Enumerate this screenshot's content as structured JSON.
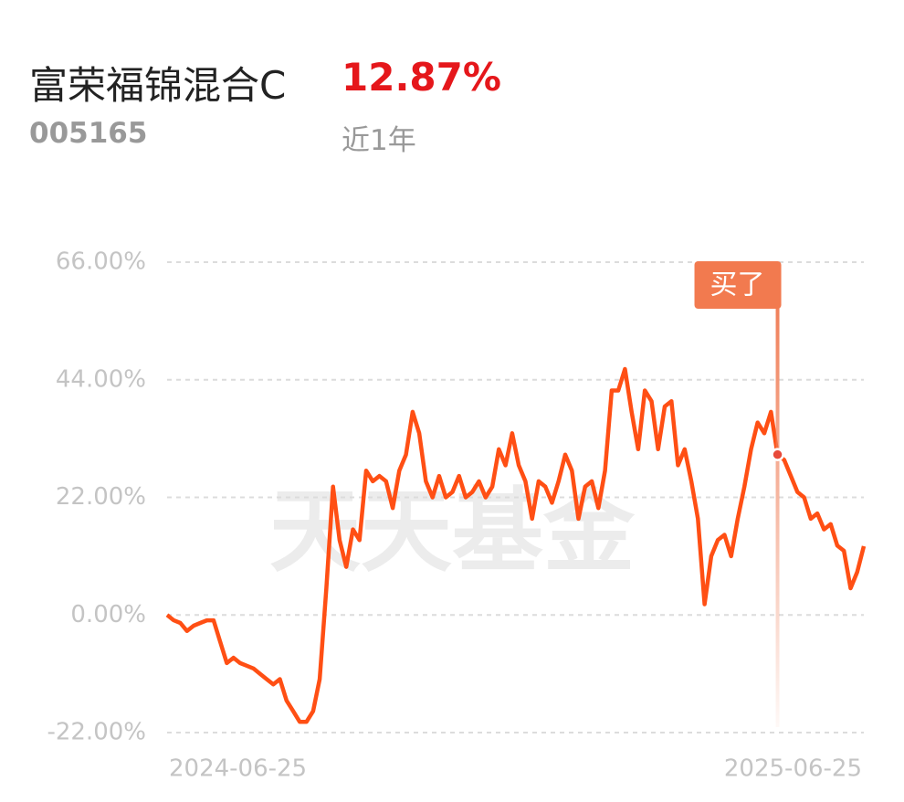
{
  "header": {
    "title": "富荣福锦混合C",
    "return": "12.87%",
    "code": "005165",
    "period": "近1年"
  },
  "chart_data": {
    "type": "line",
    "watermark": "天天基金",
    "annotation": "买了",
    "categories": [
      "2024-06-25",
      null,
      null,
      null,
      null,
      null,
      null,
      null,
      null,
      null,
      null,
      null,
      null,
      null,
      null,
      null,
      null,
      null,
      null,
      null,
      null,
      null,
      null,
      null,
      null,
      null,
      null,
      null,
      null,
      null,
      null,
      null,
      null,
      null,
      null,
      null,
      null,
      null,
      null,
      null,
      null,
      null,
      null,
      null,
      null,
      null,
      null,
      null,
      null,
      null,
      null,
      null,
      null,
      null,
      null,
      null,
      null,
      null,
      null,
      null,
      null,
      null,
      null,
      null,
      null,
      null,
      null,
      null,
      null,
      null,
      null,
      null,
      null,
      null,
      null,
      null,
      null,
      null,
      null,
      null,
      null,
      null,
      null,
      null,
      null,
      null,
      null,
      null,
      null,
      null,
      null,
      null,
      null,
      null,
      null,
      null,
      null,
      null,
      null,
      null,
      null,
      null,
      null,
      null,
      null,
      "2025-06-25"
    ],
    "series": [
      {
        "color": "#ff4f14",
        "values": [
          0,
          -1,
          -1.5,
          -3,
          -2,
          -1.5,
          -1,
          -1,
          -5,
          -9,
          -8,
          -9,
          -9.5,
          -10,
          -11,
          -12,
          -13,
          -12,
          -16,
          -18,
          -20,
          -20,
          -18,
          -12,
          5,
          24,
          14,
          9,
          16,
          14,
          27,
          25,
          26,
          25,
          20,
          27,
          30,
          38,
          34,
          25,
          22,
          26,
          22,
          23,
          26,
          22,
          23,
          25,
          22,
          24,
          31,
          28,
          34,
          28,
          25,
          18,
          25,
          24,
          21,
          25,
          30,
          27,
          18,
          24,
          25,
          20,
          27,
          42,
          42,
          46,
          38,
          31,
          42,
          40,
          31,
          39,
          40,
          28,
          31,
          25,
          18,
          2,
          11,
          14,
          15,
          11,
          18,
          24,
          31,
          36,
          34,
          38,
          30,
          29,
          26,
          23,
          22,
          18,
          19,
          16,
          17,
          13,
          12,
          5,
          8,
          12.87
        ]
      }
    ],
    "ylim": [
      -22,
      66
    ],
    "yticks": [
      {
        "value": 66,
        "label": "66.00%"
      },
      {
        "value": 44,
        "label": "44.00%"
      },
      {
        "value": 22,
        "label": "22.00%"
      },
      {
        "value": 0,
        "label": "0.00%"
      },
      {
        "value": -22,
        "label": "-22.00%"
      }
    ],
    "grid": true
  }
}
